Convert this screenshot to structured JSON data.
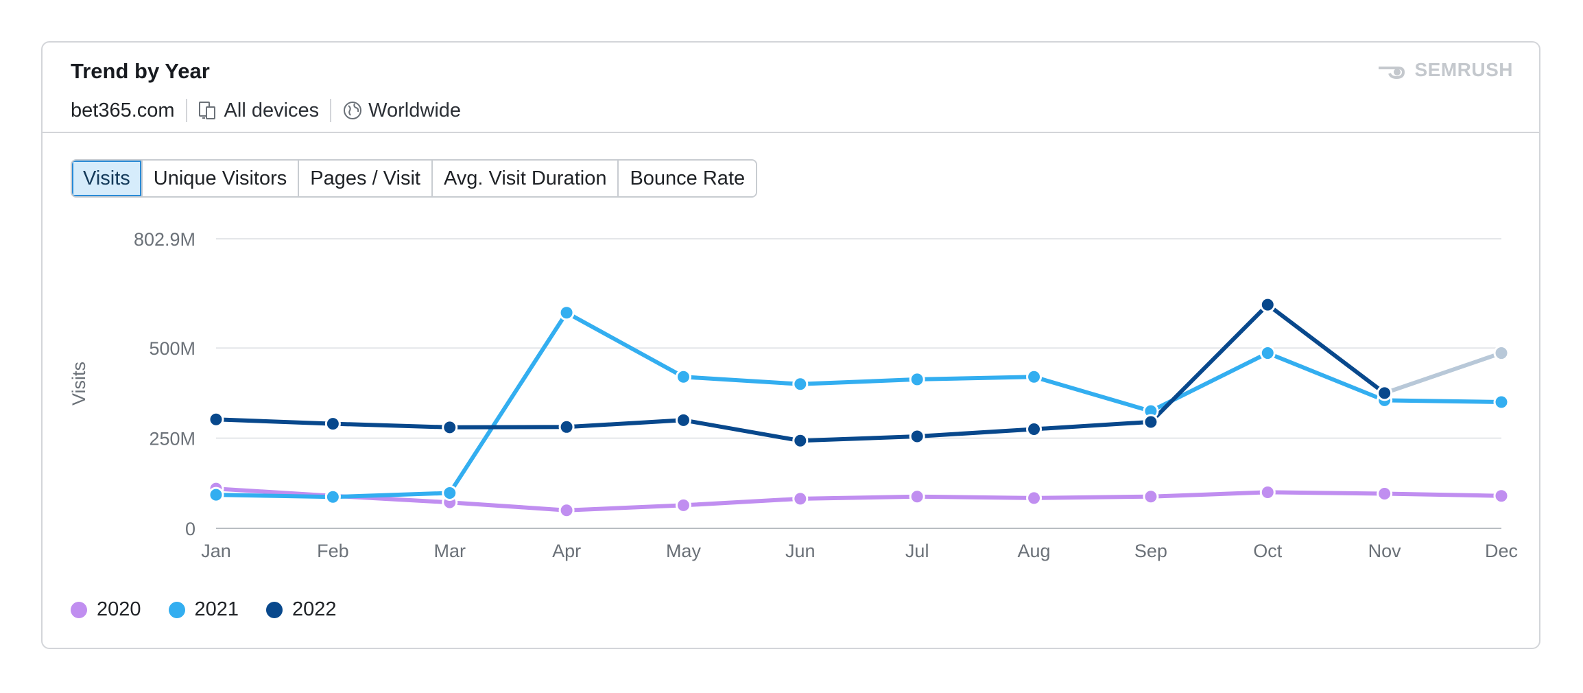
{
  "header": {
    "title": "Trend by Year",
    "domain": "bet365.com",
    "device": "All devices",
    "region": "Worldwide",
    "brand": "SEMRUSH"
  },
  "tabs": [
    {
      "label": "Visits",
      "active": true
    },
    {
      "label": "Unique Visitors",
      "active": false
    },
    {
      "label": "Pages / Visit",
      "active": false
    },
    {
      "label": "Avg. Visit Duration",
      "active": false
    },
    {
      "label": "Bounce Rate",
      "active": false
    }
  ],
  "icons": {
    "device": "devices-icon",
    "region": "globe-icon",
    "brand": "semrush-logo-icon"
  },
  "chart_data": {
    "type": "line",
    "ylabel": "Visits",
    "y_ticks": [
      {
        "value": 0,
        "label": "0"
      },
      {
        "value": 250000000,
        "label": "250M"
      },
      {
        "value": 500000000,
        "label": "500M"
      },
      {
        "value": 802900000,
        "label": "802.9M"
      }
    ],
    "ylim": [
      0,
      802900000
    ],
    "grid": true,
    "legend_position": "bottom-left",
    "categories": [
      "Jan",
      "Feb",
      "Mar",
      "Apr",
      "May",
      "Jun",
      "Jul",
      "Aug",
      "Sep",
      "Oct",
      "Nov",
      "Dec"
    ],
    "series": [
      {
        "name": "2020",
        "color": "#c08ef0",
        "values": [
          110000000,
          90000000,
          72000000,
          50000000,
          64000000,
          82000000,
          88000000,
          84000000,
          88000000,
          100000000,
          96000000,
          90000000
        ]
      },
      {
        "name": "2021",
        "color": "#33aef0",
        "values": [
          93000000,
          87000000,
          98000000,
          598000000,
          420000000,
          400000000,
          413000000,
          420000000,
          325000000,
          486000000,
          355000000,
          350000000
        ]
      },
      {
        "name": "2022",
        "color": "#08488c",
        "values": [
          302000000,
          290000000,
          280000000,
          281000000,
          300000000,
          243000000,
          255000000,
          275000000,
          295000000,
          620000000,
          375000000,
          null
        ]
      }
    ],
    "extension": {
      "from_month": "Nov",
      "to_month": "Dec",
      "value_from": 375000000,
      "value_to": 486000000,
      "color": "#b8c8d8"
    }
  }
}
